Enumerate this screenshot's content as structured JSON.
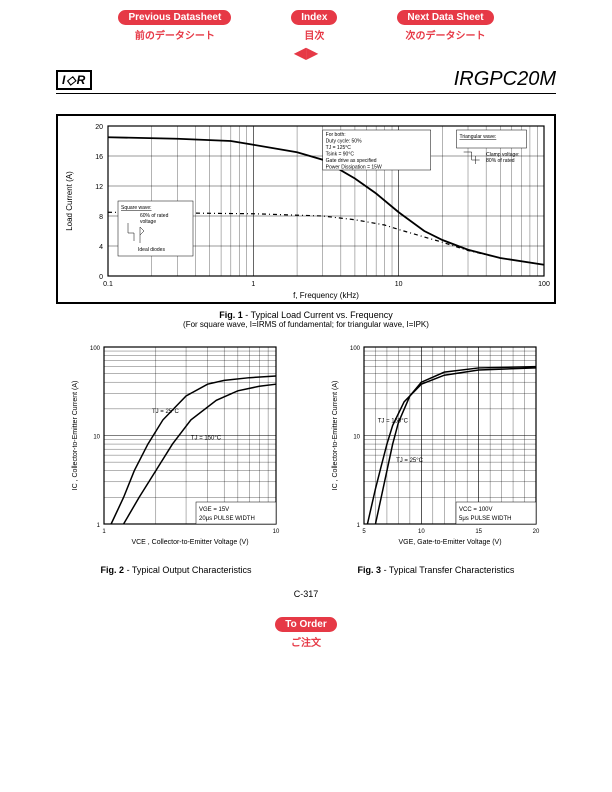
{
  "nav": {
    "prev": {
      "en": "Previous Datasheet",
      "jp": "前のデータシート"
    },
    "index": {
      "en": "Index",
      "jp": "目次"
    },
    "next": {
      "en": "Next Data Sheet",
      "jp": "次のデータシート"
    }
  },
  "logo": "I♦R",
  "part_number": "IRGPC20M",
  "page_number": "C-317",
  "order": {
    "en": "To Order",
    "jp": "ご注文"
  },
  "fig1": {
    "bold": "Fig. 1",
    "title": " - Typical Load Current vs. Frequency",
    "note": "(For square wave, I=IRMS of fundamental; for triangular wave, I=IPK)",
    "ylabel": "Load Current (A)",
    "xlabel": "f, Frequency (kHz)",
    "ylim": [
      0,
      20
    ],
    "xlim_log": [
      0.1,
      100
    ],
    "y_ticks": [
      0,
      4,
      8,
      12,
      16,
      20
    ],
    "x_ticks": [
      0.1,
      1,
      10,
      100
    ],
    "curve_solid": [
      [
        0.1,
        18.5
      ],
      [
        0.3,
        18.3
      ],
      [
        0.7,
        18
      ],
      [
        1,
        17.5
      ],
      [
        2,
        16.5
      ],
      [
        3,
        15.5
      ],
      [
        5,
        13
      ],
      [
        7,
        11
      ],
      [
        10,
        8.5
      ],
      [
        15,
        6
      ],
      [
        20,
        4.8
      ],
      [
        30,
        3.5
      ],
      [
        50,
        2.4
      ],
      [
        100,
        1.5
      ]
    ],
    "curve_dash": [
      [
        0.1,
        8.5
      ],
      [
        1,
        8.3
      ],
      [
        3,
        8
      ],
      [
        5,
        7.5
      ],
      [
        8,
        6.8
      ],
      [
        10,
        6.2
      ],
      [
        15,
        5.2
      ],
      [
        20,
        4.5
      ],
      [
        30,
        3.4
      ],
      [
        50,
        2.4
      ],
      [
        100,
        1.5
      ]
    ],
    "for_both": [
      "For both:",
      "Duty cycle: 50%",
      "TJ = 125°C",
      "Tsink = 90°C",
      "Gate drive as specified",
      "Power Dissipation = 15W"
    ],
    "tri_label": [
      "Triangular wave:"
    ],
    "tri_note": [
      "Clamp voltage:",
      "80% of rated"
    ],
    "sq_label": "Square wave:",
    "sq_note": [
      "60% of rated",
      "voltage"
    ],
    "ideal_diodes": "Ideal diodes",
    "colors": {
      "line": "#000000",
      "grid": "#000000",
      "bg": "#ffffff"
    }
  },
  "fig2": {
    "bold": "Fig. 2",
    "title": " - Typical Output Characteristics",
    "ylabel": "IC , Collector-to-Emitter Current (A)",
    "xlabel": "VCE , Collector-to-Emitter Voltage (V)",
    "xlim_log": [
      1,
      10
    ],
    "ylim_log": [
      1,
      100
    ],
    "labels": {
      "t25": "TJ = 25°C",
      "t150": "TJ = 150°C"
    },
    "box": [
      "VGE = 15V",
      "20μs PULSE WIDTH"
    ],
    "curve25": [
      [
        1.1,
        1
      ],
      [
        1.3,
        2
      ],
      [
        1.5,
        4
      ],
      [
        1.8,
        8
      ],
      [
        2.2,
        15
      ],
      [
        3,
        28
      ],
      [
        4,
        38
      ],
      [
        5,
        42
      ],
      [
        7,
        45
      ],
      [
        10,
        47
      ]
    ],
    "curve150": [
      [
        1.3,
        1
      ],
      [
        1.6,
        2
      ],
      [
        2,
        4
      ],
      [
        2.5,
        8
      ],
      [
        3.2,
        15
      ],
      [
        4.5,
        25
      ],
      [
        6,
        32
      ],
      [
        8,
        36
      ],
      [
        10,
        38
      ]
    ]
  },
  "fig3": {
    "bold": "Fig. 3",
    "title": " - Typical Transfer Characteristics",
    "ylabel": "IC , Collector-to-Emitter Current (A)",
    "xlabel": "VGE, Gate-to-Emitter Voltage (V)",
    "xlim": [
      5,
      20
    ],
    "ylim_log": [
      1,
      100
    ],
    "labels": {
      "t25": "TJ = 25°C",
      "t150": "TJ = 150°C"
    },
    "box": [
      "VCC = 100V",
      "5μs PULSE WIDTH"
    ],
    "curve25": [
      [
        6,
        1
      ],
      [
        6.5,
        2
      ],
      [
        7,
        4
      ],
      [
        7.5,
        8
      ],
      [
        8,
        14
      ],
      [
        9,
        28
      ],
      [
        10,
        40
      ],
      [
        12,
        52
      ],
      [
        15,
        58
      ],
      [
        20,
        60
      ]
    ],
    "curve150": [
      [
        5.3,
        1
      ],
      [
        6,
        2.5
      ],
      [
        6.5,
        4.5
      ],
      [
        7,
        8
      ],
      [
        7.5,
        13
      ],
      [
        8.5,
        24
      ],
      [
        10,
        38
      ],
      [
        12,
        48
      ],
      [
        15,
        55
      ],
      [
        20,
        58
      ]
    ]
  }
}
